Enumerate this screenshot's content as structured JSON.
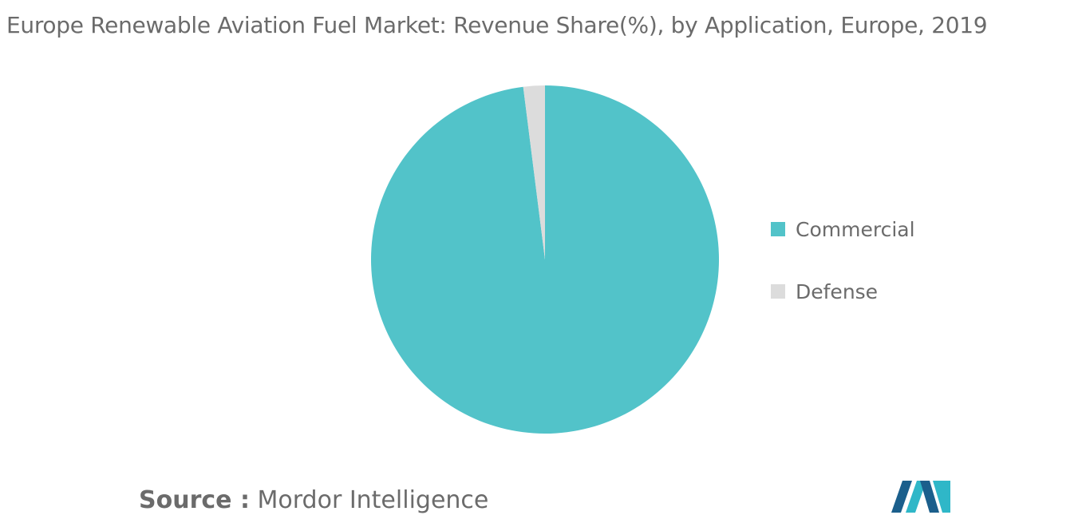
{
  "chart_data": {
    "type": "pie",
    "title": "Europe Renewable Aviation Fuel Market: Revenue Share(%), by Application, Europe, 2019",
    "slices": [
      {
        "label": "Commercial",
        "value": 98,
        "color": "#52c3c9"
      },
      {
        "label": "Defense",
        "value": 2,
        "color": "#dcdcdc"
      }
    ],
    "legend_position": "right"
  },
  "source": {
    "prefix": "Source :",
    "name": "Mordor Intelligence"
  },
  "logo": {
    "icon": "mordor-intelligence-logo-icon",
    "colors": [
      "#1b5f8c",
      "#2fb7c8"
    ]
  }
}
